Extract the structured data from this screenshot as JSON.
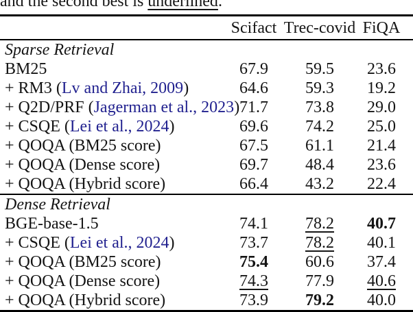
{
  "caption": {
    "prefix": "and the second best is ",
    "underlined": "underlined",
    "suffix": "."
  },
  "header": {
    "columns": [
      "Scifact",
      "Trec-covid",
      "FiQA"
    ]
  },
  "sections": [
    {
      "title": "Sparse Retrieval",
      "rows": [
        {
          "label": "BM25",
          "cells": [
            {
              "v": "67.9"
            },
            {
              "v": "59.5"
            },
            {
              "v": "23.6"
            }
          ]
        },
        {
          "label": "+ RM3",
          "cite": "Lv and Zhai, 2009",
          "cells": [
            {
              "v": "64.6"
            },
            {
              "v": "59.3"
            },
            {
              "v": "19.2"
            }
          ]
        },
        {
          "label": "+ Q2D/PRF",
          "cite": "Jagerman et al., 2023",
          "cells": [
            {
              "v": "71.7"
            },
            {
              "v": "73.8"
            },
            {
              "v": "29.0"
            }
          ]
        },
        {
          "label": "+ CSQE",
          "cite": "Lei et al., 2024",
          "cells": [
            {
              "v": "69.6"
            },
            {
              "v": "74.2"
            },
            {
              "v": "25.0"
            }
          ]
        },
        {
          "label": "+ QOQA (BM25 score)",
          "cells": [
            {
              "v": "67.5"
            },
            {
              "v": "61.1"
            },
            {
              "v": "21.4"
            }
          ]
        },
        {
          "label": "+ QOQA (Dense score)",
          "cells": [
            {
              "v": "69.7"
            },
            {
              "v": "48.4"
            },
            {
              "v": "23.6"
            }
          ]
        },
        {
          "label": "+ QOQA (Hybrid score)",
          "cells": [
            {
              "v": "66.4"
            },
            {
              "v": "43.2"
            },
            {
              "v": "22.4"
            }
          ]
        }
      ]
    },
    {
      "title": "Dense Retrieval",
      "rows": [
        {
          "label": "BGE-base-1.5",
          "cells": [
            {
              "v": "74.1"
            },
            {
              "v": "78.2",
              "style": "underline"
            },
            {
              "v": "40.7",
              "style": "bold"
            }
          ]
        },
        {
          "label": "+ CSQE",
          "cite": "Lei et al., 2024",
          "cells": [
            {
              "v": "73.7"
            },
            {
              "v": "78.2",
              "style": "underline"
            },
            {
              "v": "40.1"
            }
          ]
        },
        {
          "label": "+ QOQA (BM25 score)",
          "cells": [
            {
              "v": "75.4",
              "style": "bold"
            },
            {
              "v": "60.6"
            },
            {
              "v": "37.4"
            }
          ]
        },
        {
          "label": "+ QOQA (Dense score)",
          "cells": [
            {
              "v": "74.3",
              "style": "underline"
            },
            {
              "v": "77.9"
            },
            {
              "v": "40.6",
              "style": "underline"
            }
          ]
        },
        {
          "label": "+ QOQA (Hybrid score)",
          "cells": [
            {
              "v": "73.9"
            },
            {
              "v": "79.2",
              "style": "bold"
            },
            {
              "v": "40.0"
            }
          ]
        }
      ]
    }
  ],
  "colors": {
    "citation_blue": "#21218f",
    "text": "#141414",
    "rule": "#000000"
  }
}
